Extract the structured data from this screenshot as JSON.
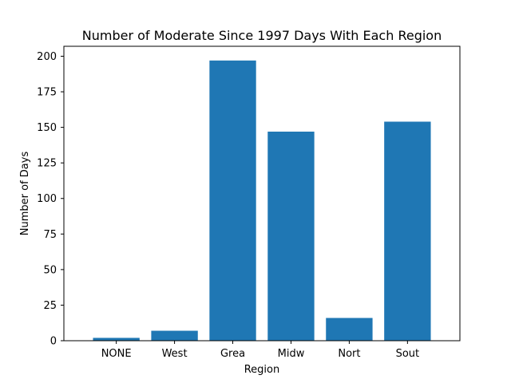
{
  "chart_data": {
    "type": "bar",
    "title": "Number of Moderate Since 1997 Days With Each Region",
    "xlabel": "Region",
    "ylabel": "Number of Days",
    "categories": [
      "NONE",
      "West",
      "Grea",
      "Midw",
      "Nort",
      "Sout"
    ],
    "values": [
      2,
      7,
      197,
      147,
      16,
      154
    ],
    "ylim": [
      0,
      207
    ],
    "yticks": [
      0,
      25,
      50,
      75,
      100,
      125,
      150,
      175,
      200
    ],
    "bar_color": "#1f77b4",
    "grid": false,
    "legend": "none"
  }
}
